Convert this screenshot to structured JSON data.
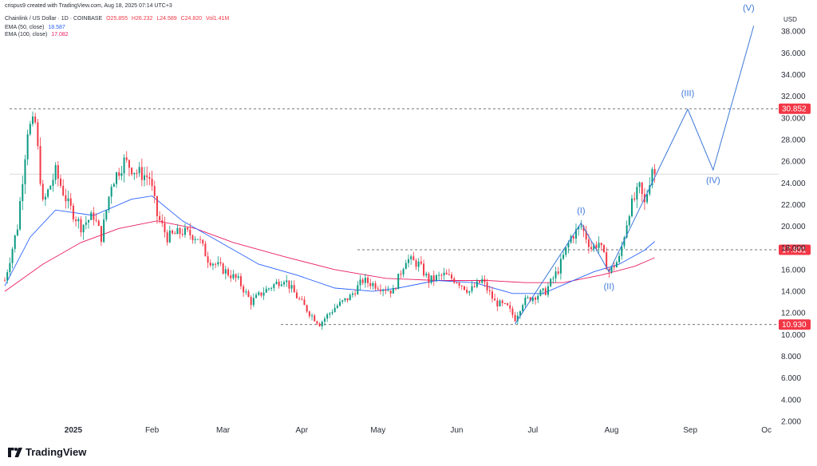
{
  "credit": "crispus9 created with TradingView.com, Aug 18, 2025 07:14 UTC+3",
  "legend": {
    "title": "Chainlink / US Dollar · 1D · COINBASE",
    "open": "O25.855",
    "high": "H26.232",
    "low": "L24.589",
    "close": "C24.820",
    "vol": "Vol1.41M",
    "ema50_label": "EMA (50, close)",
    "ema50_value": "18.587",
    "ema100_label": "EMA (100, close)",
    "ema100_value": "17.082"
  },
  "currency": "USD",
  "brand": "TradingView",
  "colors": {
    "up": "#089981",
    "down": "#f23645",
    "ema50": "#2962ff",
    "ema100": "#e91e63",
    "wave": "#3c78d8",
    "price_tag_bg": "#f23645"
  },
  "chart_data": {
    "type": "candlestick",
    "title": "Chainlink / US Dollar · 1D · COINBASE",
    "ylim": [
      2,
      40
    ],
    "y_ticks": [
      "2.000",
      "4.000",
      "6.000",
      "8.000",
      "10.000",
      "12.000",
      "14.000",
      "16.000",
      "18.000",
      "20.000",
      "22.000",
      "24.000",
      "26.000",
      "28.000",
      "30.000",
      "32.000",
      "34.000",
      "36.000",
      "38.000"
    ],
    "x_ticks": [
      {
        "label": "2025",
        "bold": true,
        "day": 27
      },
      {
        "label": "Feb",
        "bold": false,
        "day": 58
      },
      {
        "label": "Mar",
        "bold": false,
        "day": 86
      },
      {
        "label": "Apr",
        "bold": false,
        "day": 117
      },
      {
        "label": "May",
        "bold": false,
        "day": 147
      },
      {
        "label": "Jun",
        "bold": false,
        "day": 178
      },
      {
        "label": "Jul",
        "bold": false,
        "day": 208
      },
      {
        "label": "Aug",
        "bold": false,
        "day": 239
      },
      {
        "label": "Sep",
        "bold": false,
        "day": 270
      },
      {
        "label": "Oc",
        "bold": false,
        "day": 300
      }
    ],
    "x_range": [
      0,
      302
    ],
    "price_levels": [
      {
        "label": "30.852",
        "value": 30.852
      },
      {
        "label": "17.831",
        "value": 17.831
      },
      {
        "label": "10.930",
        "value": 10.93
      }
    ],
    "waypoints": [
      {
        "day": 0,
        "price": 15.0
      },
      {
        "day": 5,
        "price": 20.0
      },
      {
        "day": 9,
        "price": 29.0
      },
      {
        "day": 12,
        "price": 29.5
      },
      {
        "day": 15,
        "price": 22.0
      },
      {
        "day": 20,
        "price": 25.0
      },
      {
        "day": 25,
        "price": 22.0
      },
      {
        "day": 30,
        "price": 20.0
      },
      {
        "day": 35,
        "price": 21.0
      },
      {
        "day": 38,
        "price": 19.0
      },
      {
        "day": 42,
        "price": 24.0
      },
      {
        "day": 47,
        "price": 26.0
      },
      {
        "day": 52,
        "price": 25.0
      },
      {
        "day": 57,
        "price": 24.5
      },
      {
        "day": 60,
        "price": 21.0
      },
      {
        "day": 64,
        "price": 19.0
      },
      {
        "day": 70,
        "price": 19.5
      },
      {
        "day": 76,
        "price": 19.0
      },
      {
        "day": 80,
        "price": 17.0
      },
      {
        "day": 86,
        "price": 16.0
      },
      {
        "day": 92,
        "price": 15.0
      },
      {
        "day": 97,
        "price": 13.0
      },
      {
        "day": 102,
        "price": 14.0
      },
      {
        "day": 110,
        "price": 15.2
      },
      {
        "day": 115,
        "price": 13.5
      },
      {
        "day": 120,
        "price": 12.0
      },
      {
        "day": 124,
        "price": 11.0
      },
      {
        "day": 130,
        "price": 12.5
      },
      {
        "day": 136,
        "price": 13.5
      },
      {
        "day": 141,
        "price": 15.0
      },
      {
        "day": 147,
        "price": 14.5
      },
      {
        "day": 153,
        "price": 14.0
      },
      {
        "day": 158,
        "price": 17.0
      },
      {
        "day": 163,
        "price": 16.5
      },
      {
        "day": 167,
        "price": 15.0
      },
      {
        "day": 173,
        "price": 15.5
      },
      {
        "day": 178,
        "price": 15.0
      },
      {
        "day": 183,
        "price": 14.0
      },
      {
        "day": 188,
        "price": 15.0
      },
      {
        "day": 193,
        "price": 13.0
      },
      {
        "day": 198,
        "price": 12.5
      },
      {
        "day": 201,
        "price": 11.5
      },
      {
        "day": 204,
        "price": 13.0
      },
      {
        "day": 208,
        "price": 13.5
      },
      {
        "day": 213,
        "price": 14.0
      },
      {
        "day": 218,
        "price": 16.0
      },
      {
        "day": 223,
        "price": 19.0
      },
      {
        "day": 227,
        "price": 20.0
      },
      {
        "day": 231,
        "price": 18.0
      },
      {
        "day": 234,
        "price": 18.5
      },
      {
        "day": 238,
        "price": 15.8
      },
      {
        "day": 242,
        "price": 17.0
      },
      {
        "day": 246,
        "price": 21.5
      },
      {
        "day": 250,
        "price": 23.5
      },
      {
        "day": 252,
        "price": 22.0
      },
      {
        "day": 255,
        "price": 25.5
      },
      {
        "day": 256,
        "price": 24.8
      }
    ],
    "ema50": [
      {
        "day": 0,
        "price": 14.5
      },
      {
        "day": 10,
        "price": 19.0
      },
      {
        "day": 20,
        "price": 21.5
      },
      {
        "day": 35,
        "price": 21.0
      },
      {
        "day": 50,
        "price": 22.5
      },
      {
        "day": 58,
        "price": 22.8
      },
      {
        "day": 70,
        "price": 20.5
      },
      {
        "day": 85,
        "price": 18.5
      },
      {
        "day": 100,
        "price": 16.5
      },
      {
        "day": 115,
        "price": 15.5
      },
      {
        "day": 130,
        "price": 14.3
      },
      {
        "day": 145,
        "price": 14.0
      },
      {
        "day": 155,
        "price": 14.3
      },
      {
        "day": 170,
        "price": 15.0
      },
      {
        "day": 185,
        "price": 14.8
      },
      {
        "day": 200,
        "price": 13.8
      },
      {
        "day": 212,
        "price": 13.8
      },
      {
        "day": 222,
        "price": 14.8
      },
      {
        "day": 232,
        "price": 15.8
      },
      {
        "day": 242,
        "price": 16.5
      },
      {
        "day": 252,
        "price": 17.8
      },
      {
        "day": 256,
        "price": 18.6
      }
    ],
    "ema100": [
      {
        "day": 0,
        "price": 14.0
      },
      {
        "day": 15,
        "price": 16.5
      },
      {
        "day": 30,
        "price": 18.5
      },
      {
        "day": 45,
        "price": 19.8
      },
      {
        "day": 60,
        "price": 20.5
      },
      {
        "day": 75,
        "price": 19.8
      },
      {
        "day": 90,
        "price": 18.5
      },
      {
        "day": 110,
        "price": 17.2
      },
      {
        "day": 130,
        "price": 16.0
      },
      {
        "day": 150,
        "price": 15.2
      },
      {
        "day": 170,
        "price": 15.0
      },
      {
        "day": 190,
        "price": 15.0
      },
      {
        "day": 205,
        "price": 14.8
      },
      {
        "day": 220,
        "price": 14.8
      },
      {
        "day": 235,
        "price": 15.5
      },
      {
        "day": 248,
        "price": 16.3
      },
      {
        "day": 256,
        "price": 17.1
      }
    ],
    "elliott_wave": {
      "points": [
        {
          "day": 201,
          "price": 11.0
        },
        {
          "day": 227,
          "price": 20.3
        },
        {
          "day": 238,
          "price": 15.8
        },
        {
          "day": 269,
          "price": 30.8
        },
        {
          "day": 279,
          "price": 25.2
        },
        {
          "day": 295,
          "price": 38.5
        }
      ],
      "labels": [
        {
          "text": "(I)",
          "day": 227,
          "price": 21.2
        },
        {
          "text": "(II)",
          "day": 238,
          "price": 14.2
        },
        {
          "text": "(III)",
          "day": 269,
          "price": 32.0
        },
        {
          "text": "(IV)",
          "day": 279,
          "price": 24.0
        },
        {
          "text": "(V)",
          "day": 293,
          "price": 39.9
        }
      ]
    }
  }
}
